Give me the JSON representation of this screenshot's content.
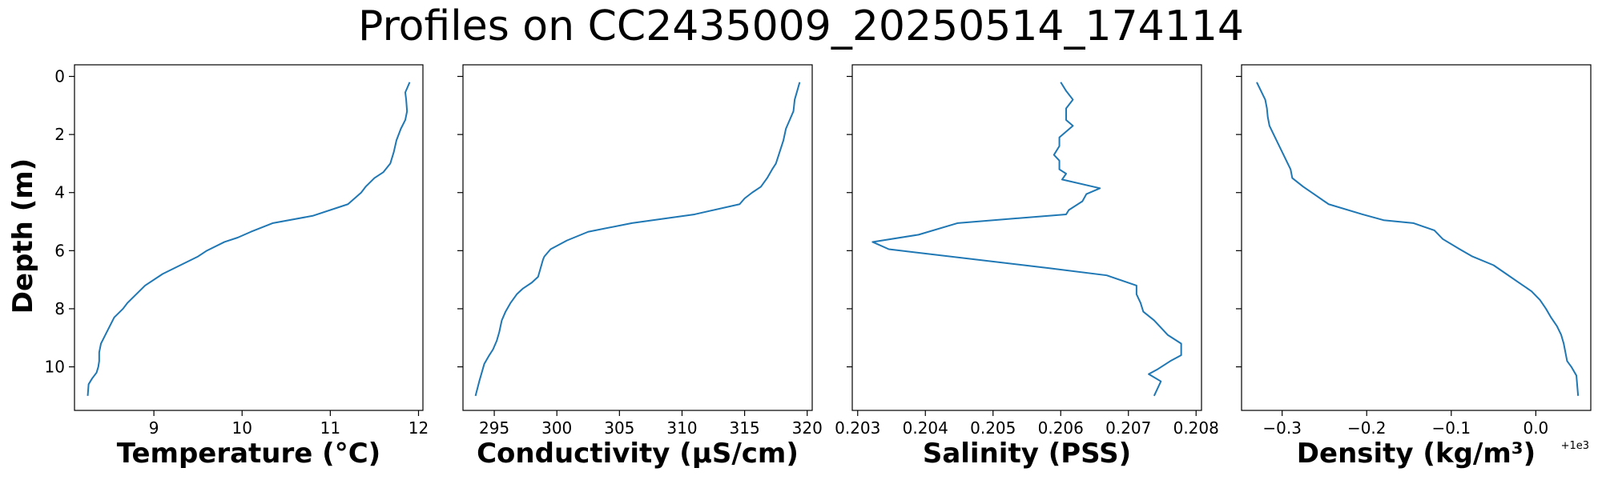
{
  "title": "Profiles on CC2435009_20250514_174114",
  "shared_y": {
    "label": "Depth (m)",
    "ticks": [
      0,
      2,
      4,
      6,
      8,
      10
    ],
    "tick_labels": [
      "0",
      "2",
      "4",
      "6",
      "8",
      "10"
    ]
  },
  "colors": {
    "line": "#1f77b4",
    "axes": "#000000"
  },
  "chart_data": [
    {
      "type": "line",
      "xlabel": "Temperature (°C)",
      "ylabel": "Depth (m)",
      "xlim": [
        8.1,
        12.05
      ],
      "ylim": [
        11.5,
        -0.4
      ],
      "y_inverted": true,
      "xticks": [
        9,
        10,
        11,
        12
      ],
      "xtick_labels": [
        "9",
        "10",
        "11",
        "12"
      ],
      "offset_text": "",
      "grid": false,
      "x": [
        11.9,
        11.85,
        11.86,
        11.87,
        11.85,
        11.8,
        11.75,
        11.72,
        11.68,
        11.6,
        11.5,
        11.4,
        11.35,
        11.2,
        10.8,
        10.35,
        10.1,
        9.95,
        9.8,
        9.6,
        9.5,
        9.3,
        9.1,
        8.9,
        8.8,
        8.7,
        8.65,
        8.55,
        8.5,
        8.45,
        8.4,
        8.38,
        8.38,
        8.37,
        8.35,
        8.3,
        8.26,
        8.25
      ],
      "y": [
        0.2,
        0.55,
        0.8,
        1.2,
        1.5,
        1.8,
        2.2,
        2.6,
        3.0,
        3.3,
        3.5,
        3.8,
        4.0,
        4.4,
        4.8,
        5.05,
        5.35,
        5.55,
        5.7,
        6.0,
        6.2,
        6.5,
        6.8,
        7.2,
        7.5,
        7.8,
        8.0,
        8.3,
        8.6,
        8.9,
        9.2,
        9.5,
        9.8,
        10.0,
        10.2,
        10.4,
        10.6,
        11.0
      ]
    },
    {
      "type": "line",
      "xlabel": "Conductivity (μS/cm)",
      "ylabel": "",
      "xlim": [
        292.5,
        320.4
      ],
      "ylim": [
        11.5,
        -0.4
      ],
      "y_inverted": true,
      "xticks": [
        295,
        300,
        305,
        310,
        315,
        320
      ],
      "xtick_labels": [
        "295",
        "300",
        "305",
        "310",
        "315",
        "320"
      ],
      "offset_text": "",
      "grid": false,
      "x": [
        319.4,
        319.2,
        319.0,
        318.9,
        318.6,
        318.3,
        318.1,
        317.8,
        317.5,
        317.2,
        316.8,
        316.3,
        315.6,
        315.0,
        314.6,
        311.0,
        306.0,
        302.5,
        300.8,
        299.5,
        299.0,
        298.9,
        298.7,
        298.5,
        298.0,
        297.3,
        296.8,
        296.3,
        295.9,
        295.6,
        295.4,
        295.2,
        294.9,
        294.6,
        294.2,
        294.0,
        293.8,
        293.5
      ],
      "y": [
        0.2,
        0.5,
        0.8,
        1.2,
        1.5,
        1.8,
        2.2,
        2.6,
        3.0,
        3.2,
        3.5,
        3.8,
        4.0,
        4.2,
        4.4,
        4.75,
        5.05,
        5.35,
        5.65,
        5.95,
        6.2,
        6.3,
        6.6,
        6.9,
        7.1,
        7.3,
        7.5,
        7.8,
        8.1,
        8.4,
        8.8,
        9.1,
        9.4,
        9.6,
        9.9,
        10.2,
        10.5,
        11.0
      ]
    },
    {
      "type": "line",
      "xlabel": "Salinity (PSS)",
      "ylabel": "",
      "xlim": [
        0.20292,
        0.20808
      ],
      "ylim": [
        11.5,
        -0.4
      ],
      "y_inverted": true,
      "xticks": [
        0.203,
        0.204,
        0.205,
        0.206,
        0.207,
        0.208
      ],
      "xtick_labels": [
        "0.203",
        "0.204",
        "0.205",
        "0.206",
        "0.207",
        "0.208"
      ],
      "offset_text": "",
      "grid": false,
      "x": [
        0.206,
        0.20608,
        0.20618,
        0.20608,
        0.20608,
        0.20618,
        0.20608,
        0.20598,
        0.20598,
        0.2059,
        0.20598,
        0.20598,
        0.20608,
        0.20602,
        0.20658,
        0.20638,
        0.20632,
        0.20612,
        0.20608,
        0.20448,
        0.2039,
        0.20322,
        0.20346,
        0.20582,
        0.20668,
        0.20712,
        0.20712,
        0.20718,
        0.20722,
        0.20738,
        0.20758,
        0.20778,
        0.20778,
        0.20762,
        0.20742,
        0.2073,
        0.20748,
        0.20738
      ],
      "y": [
        0.2,
        0.5,
        0.8,
        1.1,
        1.5,
        1.7,
        1.9,
        2.1,
        2.4,
        2.7,
        2.9,
        3.2,
        3.35,
        3.55,
        3.85,
        4.05,
        4.3,
        4.6,
        4.75,
        5.05,
        5.45,
        5.7,
        5.95,
        6.6,
        6.85,
        7.2,
        7.5,
        7.8,
        8.1,
        8.4,
        8.9,
        9.2,
        9.6,
        9.8,
        10.1,
        10.25,
        10.5,
        11.0
      ]
    },
    {
      "type": "line",
      "xlabel": "Density (kg/m³)",
      "ylabel": "",
      "xlim": [
        -0.348,
        0.065
      ],
      "ylim": [
        11.5,
        -0.4
      ],
      "y_inverted": true,
      "xticks": [
        -0.3,
        -0.2,
        -0.1,
        0.0
      ],
      "xtick_labels": [
        "−0.3",
        "−0.2",
        "−0.1",
        "0.0"
      ],
      "offset_text": "+1e3",
      "grid": false,
      "x": [
        -0.33,
        -0.325,
        -0.32,
        -0.318,
        -0.317,
        -0.315,
        -0.31,
        -0.305,
        -0.3,
        -0.295,
        -0.29,
        -0.288,
        -0.275,
        -0.26,
        -0.25,
        -0.245,
        -0.205,
        -0.18,
        -0.145,
        -0.12,
        -0.11,
        -0.09,
        -0.075,
        -0.05,
        -0.035,
        -0.02,
        -0.005,
        0.005,
        0.012,
        0.018,
        0.025,
        0.03,
        0.033,
        0.035,
        0.037,
        0.042,
        0.048,
        0.05
      ],
      "y": [
        0.2,
        0.5,
        0.8,
        1.1,
        1.4,
        1.7,
        2.0,
        2.3,
        2.6,
        2.9,
        3.2,
        3.5,
        3.8,
        4.1,
        4.3,
        4.4,
        4.75,
        4.95,
        5.05,
        5.3,
        5.6,
        5.95,
        6.2,
        6.5,
        6.8,
        7.1,
        7.4,
        7.7,
        8.0,
        8.3,
        8.6,
        8.9,
        9.2,
        9.5,
        9.8,
        10.0,
        10.3,
        11.0
      ]
    }
  ]
}
